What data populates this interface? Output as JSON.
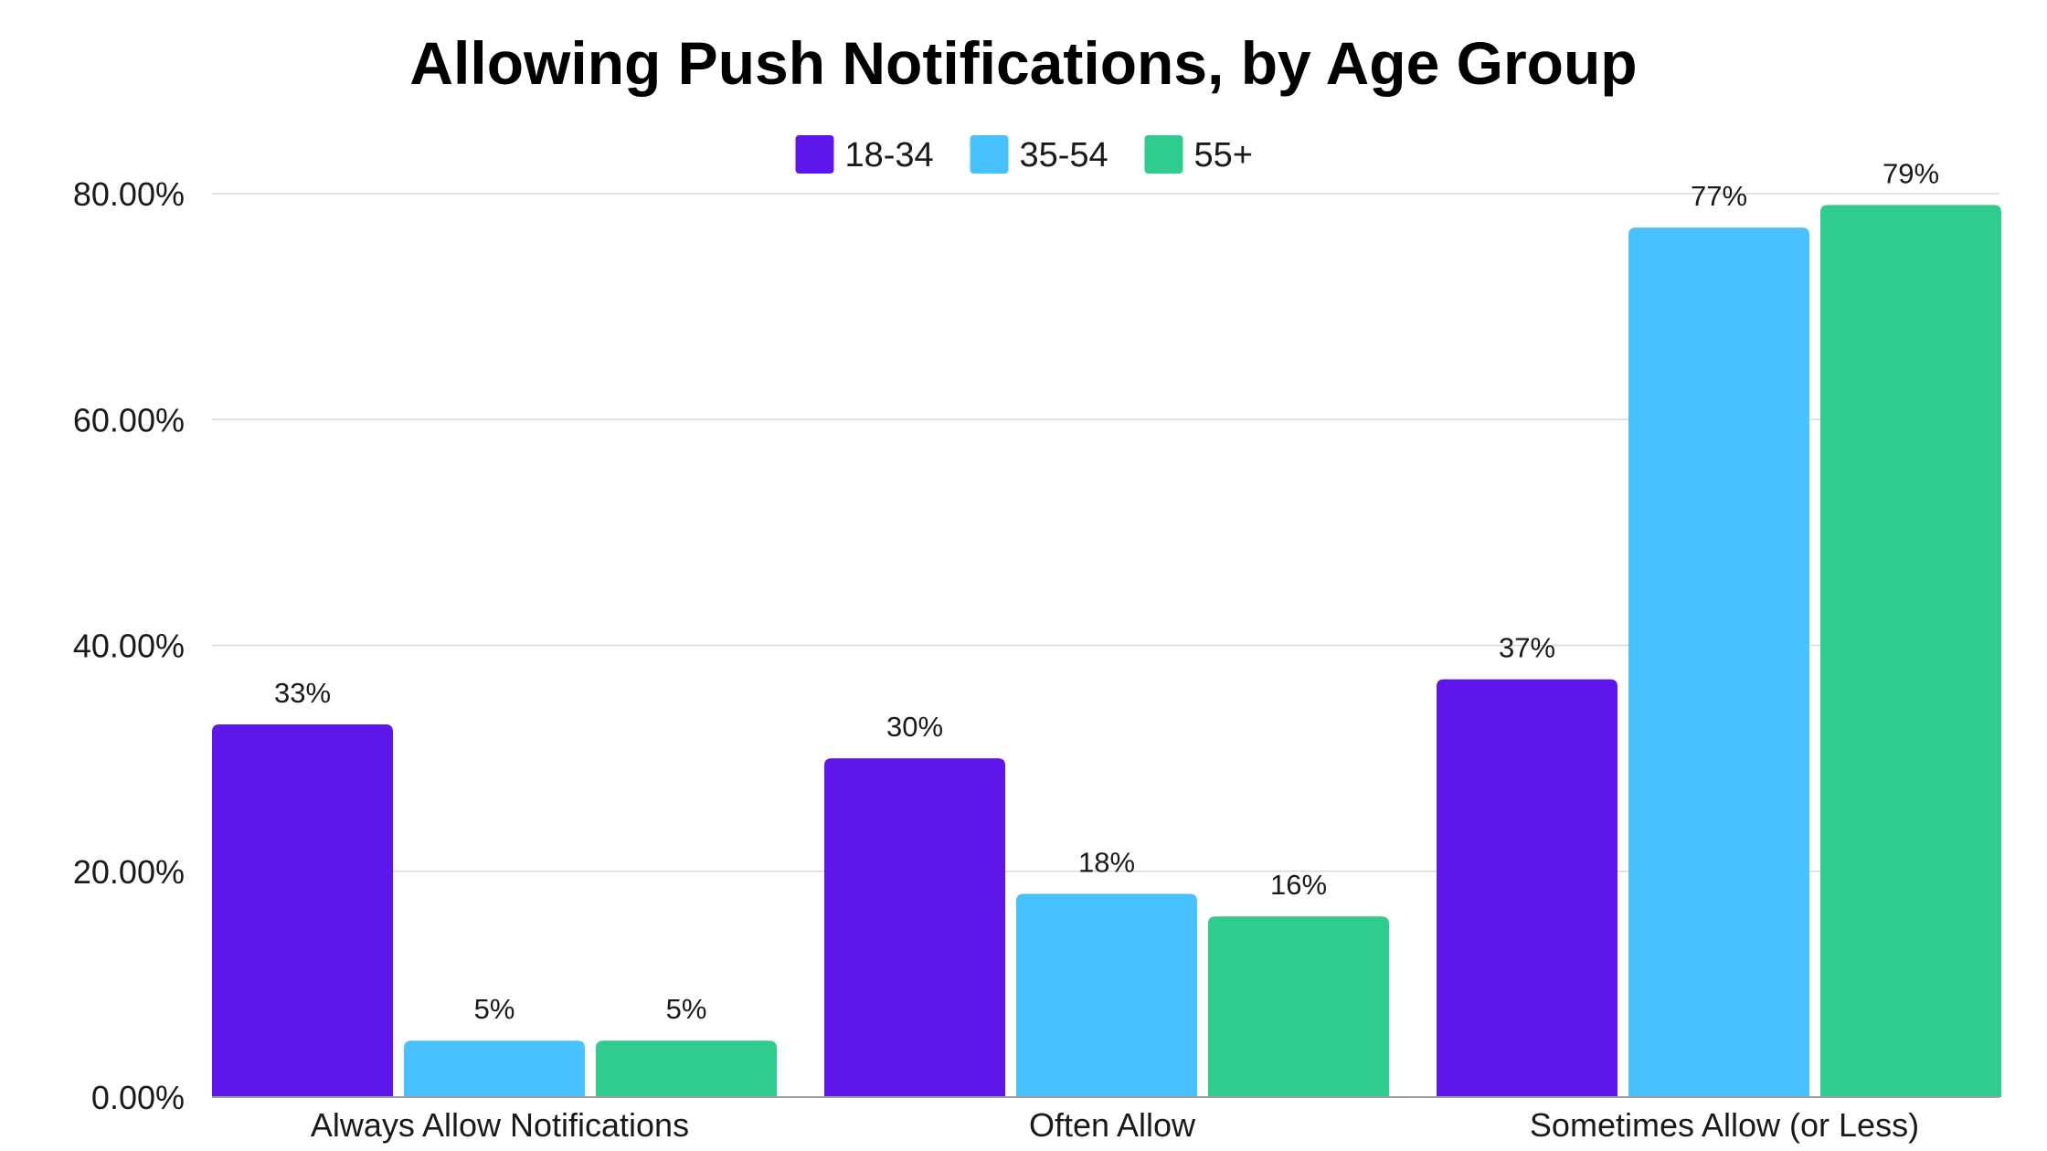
{
  "chart_data": {
    "type": "bar",
    "title": "Allowing Push Notifications, by Age Group",
    "xlabel": "",
    "ylabel": "",
    "categories": [
      "Always Allow Notifications",
      "Often Allow",
      "Sometimes Allow (or Less)"
    ],
    "series": [
      {
        "name": "18-34",
        "color": "#5e17eb",
        "values": [
          33,
          30,
          37
        ],
        "labels": [
          "33%",
          "30%",
          "37%"
        ]
      },
      {
        "name": "35-54",
        "color": "#47c2ff",
        "values": [
          5,
          18,
          77
        ],
        "labels": [
          "5%",
          "18%",
          "77%"
        ]
      },
      {
        "name": "55+",
        "color": "#2ecc8e",
        "values": [
          5,
          16,
          79
        ],
        "labels": [
          "5%",
          "16%",
          "79%"
        ]
      }
    ],
    "ylim": [
      0,
      80
    ],
    "yticks": [
      0,
      20,
      40,
      60,
      80
    ],
    "ytick_labels": [
      "0.00%",
      "20.00%",
      "40.00%",
      "60.00%",
      "80.00%"
    ],
    "grid": true,
    "legend_position": "top-center"
  }
}
